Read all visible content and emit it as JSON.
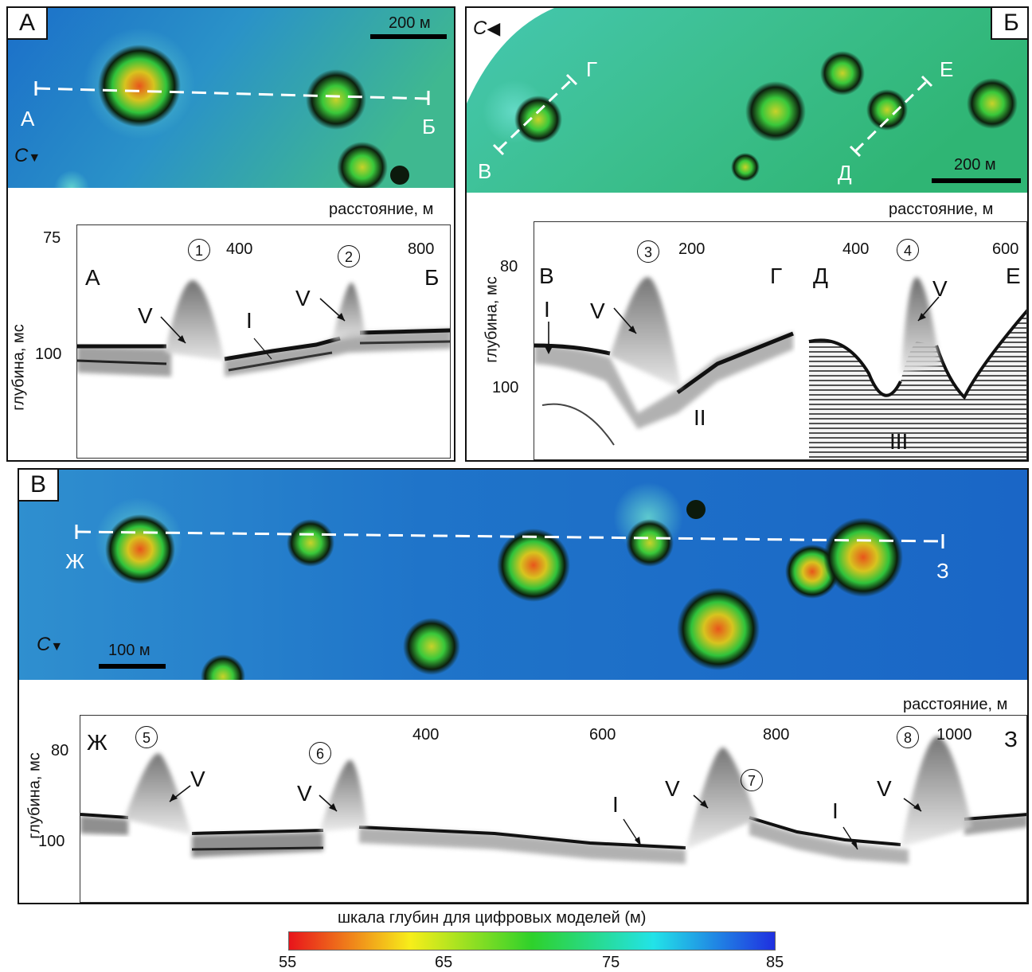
{
  "panelA": {
    "letter": "А",
    "scale_label": "200 м",
    "north": "С",
    "map_labels": {
      "start": "А",
      "end": "Б"
    },
    "distance_title": "расстояние, м",
    "x_ticks": [
      "400",
      "800"
    ],
    "y_ticks": [
      "75",
      "100"
    ],
    "y_title": "глубина, мс",
    "profile_labels": {
      "start": "А",
      "end": "Б"
    },
    "features": [
      {
        "num": "1",
        "type": "V"
      },
      {
        "num": "2",
        "type": "V"
      }
    ],
    "units": [
      "I"
    ]
  },
  "panelB": {
    "letter": "Б",
    "scale_label": "200 м",
    "north": "С",
    "map_labels": {
      "v": "В",
      "g": "Г",
      "d": "Д",
      "e": "Е"
    },
    "distance_title": "расстояние, м",
    "x_ticks": [
      "200",
      "400",
      "600"
    ],
    "y_ticks": [
      "80",
      "100"
    ],
    "y_title": "глубина, мс",
    "profile_labels": {
      "v": "В",
      "g": "Г",
      "d": "Д",
      "e": "Е"
    },
    "features": [
      {
        "num": "3",
        "type": "V"
      },
      {
        "num": "4",
        "type": "V"
      }
    ],
    "units": [
      "I",
      "II",
      "III"
    ]
  },
  "panelV": {
    "letter": "В",
    "scale_label": "100 м",
    "north": "С",
    "map_labels": {
      "start": "Ж",
      "end": "З"
    },
    "distance_title": "расстояние, м",
    "x_ticks": [
      "400",
      "600",
      "800",
      "1000"
    ],
    "y_ticks": [
      "80",
      "100"
    ],
    "y_title": "глубина, мс",
    "profile_labels": {
      "start": "Ж",
      "end": "З"
    },
    "features": [
      {
        "num": "5",
        "type": "V"
      },
      {
        "num": "6",
        "type": "V"
      },
      {
        "num": "7",
        "type": "V"
      },
      {
        "num": "8",
        "type": "V"
      }
    ],
    "units": [
      "I",
      "I"
    ]
  },
  "colorbar": {
    "title": "шкала глубин для цифровых моделей (м)",
    "ticks": [
      "55",
      "65",
      "75",
      "85"
    ],
    "colors": [
      "#e8141b",
      "#f7ee1a",
      "#2ed12b",
      "#22e3e8",
      "#1f2fe0"
    ]
  }
}
